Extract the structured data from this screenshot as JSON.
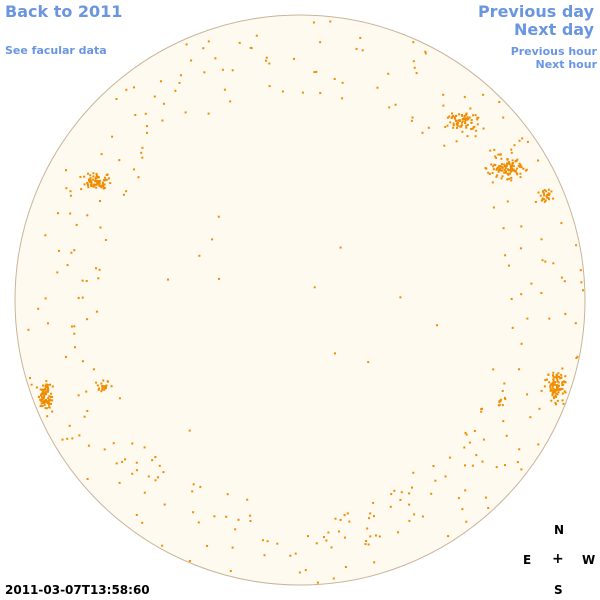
{
  "links": {
    "back": "Back to 2011",
    "facular": "See facular data",
    "previous_day": "Previous day",
    "next_day": "Next day",
    "previous_hour": "Previous hour",
    "next_hour": "Next hour"
  },
  "compass": {
    "north": "N",
    "east": "E",
    "center": "+",
    "west": "W",
    "south": "S"
  },
  "timestamp": "2011-03-07T13:58:60",
  "colors": {
    "disk_fill": "#fffaf0",
    "disk_border": "#c8b49a",
    "facula": "#f08c00",
    "link": "#6a96e0"
  }
}
